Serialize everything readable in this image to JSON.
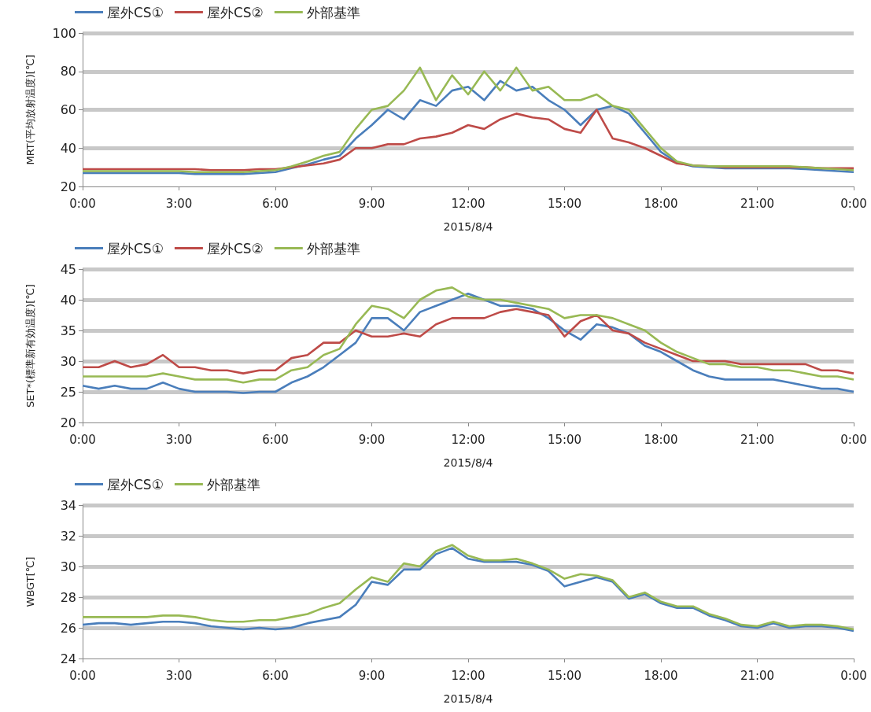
{
  "chart_data": [
    {
      "type": "line",
      "xlabel": "2015/8/4",
      "ylabel": "MRT(平均放射温度)[℃]",
      "legend": "top left",
      "grid": "y",
      "xlim": [
        0,
        24
      ],
      "xticks": [
        {
          "value": 0,
          "label": "0:00"
        },
        {
          "value": 3,
          "label": "3:00"
        },
        {
          "value": 6,
          "label": "6:00"
        },
        {
          "value": 9,
          "label": "9:00"
        },
        {
          "value": 12,
          "label": "12:00"
        },
        {
          "value": 15,
          "label": "15:00"
        },
        {
          "value": 18,
          "label": "18:00"
        },
        {
          "value": 21,
          "label": "21:00"
        },
        {
          "value": 24,
          "label": "0:00"
        }
      ],
      "ylim": [
        20,
        100
      ],
      "yticks": [
        20,
        40,
        60,
        80,
        100
      ],
      "x": [
        0,
        0.5,
        1,
        1.5,
        2,
        2.5,
        3,
        3.5,
        4,
        4.5,
        5,
        5.5,
        6,
        6.5,
        7,
        7.5,
        8,
        8.5,
        9,
        9.5,
        10,
        10.5,
        11,
        11.5,
        12,
        12.5,
        13,
        13.5,
        14,
        14.5,
        15,
        15.5,
        16,
        16.5,
        17,
        17.5,
        18,
        18.5,
        19,
        19.5,
        20,
        20.5,
        21,
        21.5,
        22,
        22.5,
        23,
        23.5,
        24
      ],
      "series": [
        {
          "name": "屋外CS①",
          "color": "#4a7ebb",
          "values": [
            27,
            27,
            27,
            27,
            27,
            27,
            27,
            26.5,
            26.5,
            26.5,
            26.5,
            27,
            27.5,
            29.5,
            31.5,
            34,
            36,
            45,
            52,
            60,
            55,
            65,
            62,
            70,
            72,
            65,
            75,
            70,
            72,
            65,
            60,
            52,
            60,
            62,
            58,
            48,
            38,
            32.5,
            30.5,
            30,
            29.5,
            29.5,
            29.5,
            29.5,
            29.5,
            29,
            28.5,
            28,
            27.5
          ]
        },
        {
          "name": "屋外CS②",
          "color": "#be4b48",
          "values": [
            29,
            29,
            29,
            29,
            29,
            29,
            29,
            29,
            28.5,
            28.5,
            28.5,
            29,
            29,
            30,
            31,
            32,
            34,
            40,
            40,
            42,
            42,
            45,
            46,
            48,
            52,
            50,
            55,
            58,
            56,
            55,
            50,
            48,
            60,
            45,
            43,
            40,
            36,
            32,
            31,
            30.5,
            30,
            30,
            30,
            30,
            30,
            30,
            29.5,
            29.5,
            29.5
          ]
        },
        {
          "name": "外部基準",
          "color": "#98b954",
          "values": [
            28,
            28,
            28,
            28,
            28,
            28,
            28,
            27.5,
            27.5,
            27.5,
            27.5,
            28,
            28.5,
            30.5,
            33,
            36,
            38,
            50,
            60,
            62,
            70,
            82,
            65,
            78,
            68,
            80,
            70,
            82,
            70,
            72,
            65,
            65,
            68,
            62,
            60,
            50,
            40,
            33,
            31,
            30.5,
            30.5,
            30.5,
            30.5,
            30.5,
            30.5,
            30,
            29.5,
            29,
            28.5
          ]
        }
      ]
    },
    {
      "type": "line",
      "xlabel": "2015/8/4",
      "ylabel": "SET*(標準新有効温度)[℃]",
      "legend": "top left",
      "grid": "y",
      "xlim": [
        0,
        24
      ],
      "xticks": [
        {
          "value": 0,
          "label": "0:00"
        },
        {
          "value": 3,
          "label": "3:00"
        },
        {
          "value": 6,
          "label": "6:00"
        },
        {
          "value": 9,
          "label": "9:00"
        },
        {
          "value": 12,
          "label": "12:00"
        },
        {
          "value": 15,
          "label": "15:00"
        },
        {
          "value": 18,
          "label": "18:00"
        },
        {
          "value": 21,
          "label": "21:00"
        },
        {
          "value": 24,
          "label": "0:00"
        }
      ],
      "ylim": [
        20,
        45
      ],
      "yticks": [
        20,
        25,
        30,
        35,
        40,
        45
      ],
      "x": [
        0,
        0.5,
        1,
        1.5,
        2,
        2.5,
        3,
        3.5,
        4,
        4.5,
        5,
        5.5,
        6,
        6.5,
        7,
        7.5,
        8,
        8.5,
        9,
        9.5,
        10,
        10.5,
        11,
        11.5,
        12,
        12.5,
        13,
        13.5,
        14,
        14.5,
        15,
        15.5,
        16,
        16.5,
        17,
        17.5,
        18,
        18.5,
        19,
        19.5,
        20,
        20.5,
        21,
        21.5,
        22,
        22.5,
        23,
        23.5,
        24
      ],
      "series": [
        {
          "name": "屋外CS①",
          "color": "#4a7ebb",
          "values": [
            26,
            25.5,
            26,
            25.5,
            25.5,
            26.5,
            25.5,
            25,
            25,
            25,
            24.8,
            25,
            25,
            26.5,
            27.5,
            29,
            31,
            33,
            37,
            37,
            35,
            38,
            39,
            40,
            41,
            40,
            39,
            39,
            38.5,
            37,
            35,
            33.5,
            36,
            35.5,
            34.5,
            32.5,
            31.5,
            30,
            28.5,
            27.5,
            27,
            27,
            27,
            27,
            26.5,
            26,
            25.5,
            25.5,
            25
          ]
        },
        {
          "name": "屋外CS②",
          "color": "#be4b48",
          "values": [
            29,
            29,
            30,
            29,
            29.5,
            31,
            29,
            29,
            28.5,
            28.5,
            28,
            28.5,
            28.5,
            30.5,
            31,
            33,
            33,
            35,
            34,
            34,
            34.5,
            34,
            36,
            37,
            37,
            37,
            38,
            38.5,
            38,
            37.5,
            34,
            36.5,
            37.5,
            35,
            34.5,
            33,
            32,
            31,
            30,
            30,
            30,
            29.5,
            29.5,
            29.5,
            29.5,
            29.5,
            28.5,
            28.5,
            28
          ]
        },
        {
          "name": "外部基準",
          "color": "#98b954",
          "values": [
            27.5,
            27.5,
            27.5,
            27.5,
            27.5,
            28,
            27.5,
            27,
            27,
            27,
            26.5,
            27,
            27,
            28.5,
            29,
            31,
            32,
            36,
            39,
            38.5,
            37,
            40,
            41.5,
            42,
            40.5,
            40,
            40,
            39.5,
            39,
            38.5,
            37,
            37.5,
            37.5,
            37,
            36,
            35,
            33,
            31.5,
            30.5,
            29.5,
            29.5,
            29,
            29,
            28.5,
            28.5,
            28,
            27.5,
            27.5,
            27
          ]
        }
      ]
    },
    {
      "type": "line",
      "xlabel": "2015/8/4",
      "ylabel": "WBGT[℃]",
      "legend": "top left",
      "grid": "y",
      "xlim": [
        0,
        24
      ],
      "xticks": [
        {
          "value": 0,
          "label": "0:00"
        },
        {
          "value": 3,
          "label": "3:00"
        },
        {
          "value": 6,
          "label": "6:00"
        },
        {
          "value": 9,
          "label": "9:00"
        },
        {
          "value": 12,
          "label": "12:00"
        },
        {
          "value": 15,
          "label": "15:00"
        },
        {
          "value": 18,
          "label": "18:00"
        },
        {
          "value": 21,
          "label": "21:00"
        },
        {
          "value": 24,
          "label": "0:00"
        }
      ],
      "ylim": [
        24,
        34
      ],
      "yticks": [
        24,
        26,
        28,
        30,
        32,
        34
      ],
      "x": [
        0,
        0.5,
        1,
        1.5,
        2,
        2.5,
        3,
        3.5,
        4,
        4.5,
        5,
        5.5,
        6,
        6.5,
        7,
        7.5,
        8,
        8.5,
        9,
        9.5,
        10,
        10.5,
        11,
        11.5,
        12,
        12.5,
        13,
        13.5,
        14,
        14.5,
        15,
        15.5,
        16,
        16.5,
        17,
        17.5,
        18,
        18.5,
        19,
        19.5,
        20,
        20.5,
        21,
        21.5,
        22,
        22.5,
        23,
        23.5,
        24
      ],
      "series": [
        {
          "name": "屋外CS①",
          "color": "#4a7ebb",
          "values": [
            26.2,
            26.3,
            26.3,
            26.2,
            26.3,
            26.4,
            26.4,
            26.3,
            26.1,
            26,
            25.9,
            26,
            25.9,
            26,
            26.3,
            26.5,
            26.7,
            27.5,
            29,
            28.8,
            29.8,
            29.8,
            30.8,
            31.2,
            30.5,
            30.3,
            30.3,
            30.3,
            30.1,
            29.7,
            28.7,
            29,
            29.3,
            29,
            27.9,
            28.2,
            27.6,
            27.3,
            27.3,
            26.8,
            26.5,
            26.1,
            26,
            26.3,
            26,
            26.1,
            26.1,
            26,
            25.8
          ]
        },
        {
          "name": "外部基準",
          "color": "#98b954",
          "values": [
            26.7,
            26.7,
            26.7,
            26.7,
            26.7,
            26.8,
            26.8,
            26.7,
            26.5,
            26.4,
            26.4,
            26.5,
            26.5,
            26.7,
            26.9,
            27.3,
            27.6,
            28.5,
            29.3,
            29,
            30.2,
            30,
            31,
            31.4,
            30.7,
            30.4,
            30.4,
            30.5,
            30.2,
            29.8,
            29.2,
            29.5,
            29.4,
            29.1,
            28,
            28.3,
            27.7,
            27.4,
            27.4,
            26.9,
            26.6,
            26.2,
            26.1,
            26.4,
            26.1,
            26.2,
            26.2,
            26.1,
            25.9
          ]
        }
      ]
    }
  ]
}
